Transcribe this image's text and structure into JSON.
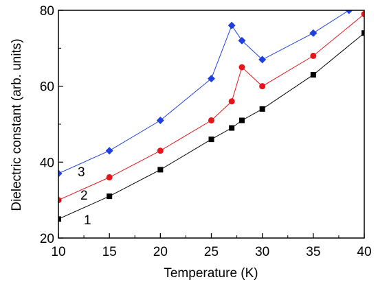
{
  "chart_data": {
    "type": "line",
    "xlabel": "Temperature (K)",
    "ylabel": "Dielectric constant (arb. units)",
    "xlim": [
      10,
      40
    ],
    "ylim": [
      20,
      80
    ],
    "xticks": [
      10,
      15,
      20,
      25,
      30,
      35,
      40
    ],
    "yticks": [
      20,
      40,
      60,
      80
    ],
    "grid": false,
    "series": [
      {
        "name": "1",
        "marker": "square",
        "color": "#000000",
        "x": [
          10,
          15,
          20,
          25,
          27,
          28,
          30,
          35,
          40
        ],
        "y": [
          25,
          31,
          38,
          46,
          49,
          51,
          54,
          63,
          74
        ]
      },
      {
        "name": "2",
        "marker": "circle",
        "color": "#e8141a",
        "x": [
          10,
          15,
          20,
          25,
          27,
          28,
          30,
          35,
          40
        ],
        "y": [
          30,
          36,
          43,
          51,
          56,
          65,
          60,
          68,
          79
        ]
      },
      {
        "name": "3",
        "marker": "diamond",
        "color": "#1f3fe0",
        "x": [
          10,
          15,
          20,
          25,
          27,
          28,
          30,
          35,
          38.5
        ],
        "y": [
          37,
          43,
          51,
          62,
          76,
          72,
          67,
          74,
          80
        ]
      }
    ]
  }
}
